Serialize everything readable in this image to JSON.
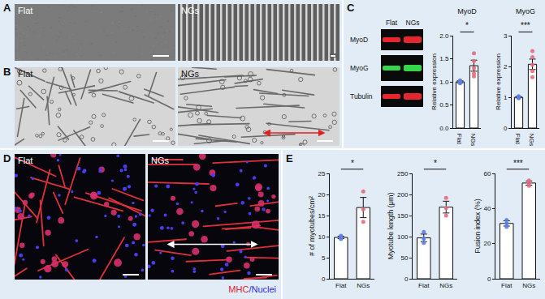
{
  "panels": {
    "A": {
      "letter": "A",
      "labels": [
        "Flat",
        "NGs"
      ]
    },
    "B": {
      "letter": "B",
      "labels": [
        "Flat",
        "NGs"
      ]
    },
    "C": {
      "letter": "C",
      "blot_columns": [
        "Flat",
        "NGs"
      ],
      "blot_rows": [
        "MyoD",
        "MyoG",
        "Tubulin"
      ]
    },
    "D": {
      "letter": "D",
      "labels": [
        "Flat",
        "NGs"
      ],
      "stain_labels": [
        "MHC",
        "/Nuclei"
      ]
    },
    "E": {
      "letter": "E"
    }
  },
  "chart_data": [
    {
      "type": "bar",
      "title": "MyoD",
      "ylabel": "Relative expression",
      "categories": [
        "Flat",
        "NGs"
      ],
      "values": [
        1.0,
        1.35
      ],
      "errors": [
        0.02,
        0.12
      ],
      "points": [
        [
          0.97,
          0.99,
          1.0,
          1.01,
          1.03
        ],
        [
          1.12,
          1.18,
          1.3,
          1.45,
          1.62
        ]
      ],
      "colors": [
        "#5b7ee5",
        "#e86a7c"
      ],
      "ylim": [
        0,
        2
      ],
      "yticks": [
        {
          "value": 0,
          "label": "0.0"
        },
        0.5,
        {
          "value": 1,
          "label": "1.0"
        },
        1.5,
        {
          "value": 2,
          "label": "2.0"
        }
      ],
      "annotations": [
        "*"
      ]
    },
    {
      "type": "bar",
      "title": "MyoG",
      "ylabel": "Relative expression",
      "categories": [
        "Flat",
        "NGs"
      ],
      "values": [
        1.0,
        2.07
      ],
      "errors": [
        0.02,
        0.17
      ],
      "points": [
        [
          0.97,
          0.99,
          1.0,
          1.01,
          1.03
        ],
        [
          1.65,
          1.85,
          2.05,
          2.3,
          2.5
        ]
      ],
      "colors": [
        "#5b7ee5",
        "#e86a7c"
      ],
      "ylim": [
        0,
        3
      ],
      "yticks": [
        0,
        1,
        2,
        3
      ],
      "annotations": [
        "***"
      ]
    },
    {
      "type": "bar",
      "ylabel": "# of myotubes/cm²",
      "categories": [
        "Flat",
        "NGs"
      ],
      "values": [
        9.8,
        16.9
      ],
      "errors": [
        0.3,
        2.4
      ],
      "points": [
        [
          9.4,
          9.8,
          10.2
        ],
        [
          13.5,
          16.5,
          20.7
        ]
      ],
      "colors": [
        "#5b7ee5",
        "#e86a7c"
      ],
      "ylim": [
        0,
        25
      ],
      "yticks": [
        0,
        5,
        10,
        15,
        20,
        25
      ],
      "annotations": [
        "*"
      ]
    },
    {
      "type": "bar",
      "ylabel": "Myotube length (μm)",
      "categories": [
        "Flat",
        "NGs"
      ],
      "values": [
        97,
        170
      ],
      "errors": [
        9,
        14
      ],
      "points": [
        [
          85,
          95,
          111
        ],
        [
          150,
          168,
          192
        ]
      ],
      "colors": [
        "#5b7ee5",
        "#e86a7c"
      ],
      "ylim": [
        0,
        250
      ],
      "yticks": [
        0,
        50,
        100,
        150,
        200,
        250
      ],
      "annotations": [
        "*"
      ]
    },
    {
      "type": "bar",
      "ylabel": "Fusion index (%)",
      "categories": [
        "Flat",
        "NGs"
      ],
      "values": [
        31.5,
        54.5
      ],
      "errors": [
        1.5,
        1.2
      ],
      "points": [
        [
          29.5,
          31.5,
          33.5
        ],
        [
          53,
          54.5,
          56
        ]
      ],
      "colors": [
        "#5b7ee5",
        "#e86a7c"
      ],
      "ylim": [
        0,
        60
      ],
      "yticks": [
        0,
        20,
        40,
        60
      ],
      "annotations": [
        "***"
      ]
    }
  ]
}
